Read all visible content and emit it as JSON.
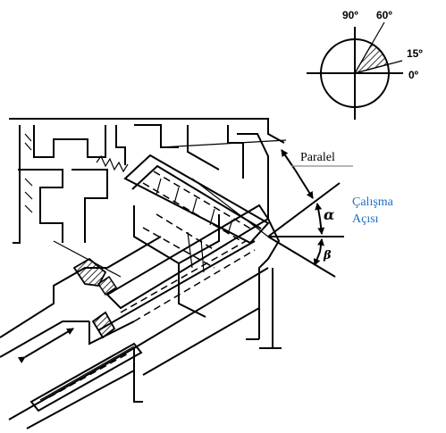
{
  "angle_gauge": {
    "label_90": "90º",
    "label_60": "60º",
    "label_15": "15º",
    "label_0": "0º"
  },
  "annotations": {
    "paralel": "Paralel",
    "working_angle_line1": "Çalışma",
    "working_angle_line2": "Açısı",
    "alpha": "α",
    "beta": "β"
  },
  "colors": {
    "ink": "#000000",
    "accent_text": "#1f6fc4",
    "leader": "#8a8a8a"
  }
}
